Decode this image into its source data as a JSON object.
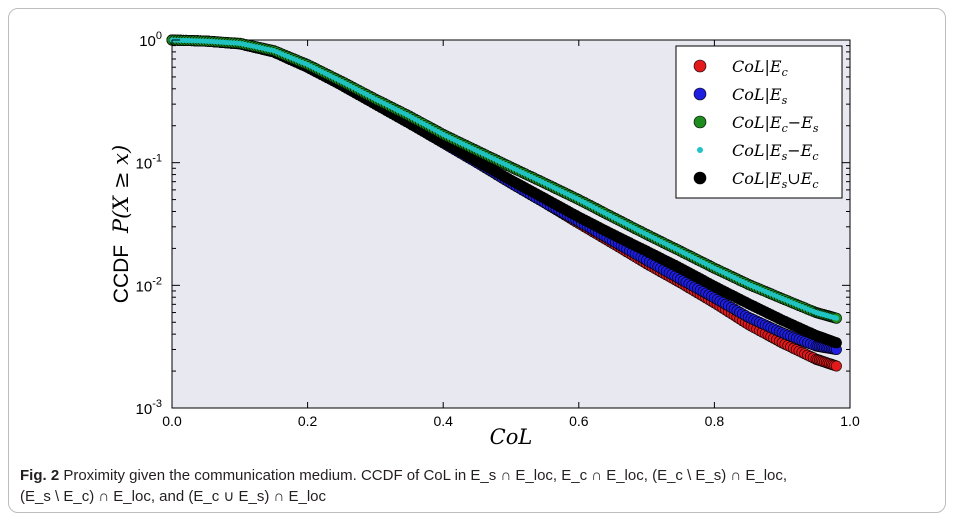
{
  "chart_data": {
    "type": "scatter",
    "xlabel": "CoL",
    "ylabel_prefix": "CCDF",
    "ylabel_math": "P(X ≥ x)",
    "xlim": [
      0.0,
      1.0
    ],
    "ylim": [
      0.001,
      1.0
    ],
    "yscale": "log",
    "grid": false,
    "legend_position": "top-right",
    "x_ticks": [
      "0.0",
      "0.2",
      "0.4",
      "0.6",
      "0.8",
      "1.0"
    ],
    "y_ticks": [
      {
        "base": "10",
        "exp": "0"
      },
      {
        "base": "10",
        "exp": "-1"
      },
      {
        "base": "10",
        "exp": "-2"
      },
      {
        "base": "10",
        "exp": "-3"
      }
    ],
    "series": [
      {
        "name": "CoL|E_c",
        "label_main": "CoL|E",
        "label_sub": "c",
        "label_rest": "",
        "color": "#e31a1c",
        "marker": "large",
        "x": [
          0.0,
          0.05,
          0.1,
          0.15,
          0.2,
          0.25,
          0.3,
          0.35,
          0.4,
          0.45,
          0.5,
          0.55,
          0.6,
          0.65,
          0.7,
          0.75,
          0.8,
          0.85,
          0.9,
          0.95,
          0.98
        ],
        "y": [
          1.0,
          0.98,
          0.93,
          0.8,
          0.6,
          0.43,
          0.3,
          0.21,
          0.145,
          0.1,
          0.068,
          0.047,
          0.032,
          0.022,
          0.015,
          0.0105,
          0.0072,
          0.0048,
          0.0034,
          0.0025,
          0.0022
        ]
      },
      {
        "name": "CoL|E_s",
        "label_main": "CoL|E",
        "label_sub": "s",
        "label_rest": "",
        "color": "#1f1fe0",
        "marker": "large",
        "x": [
          0.0,
          0.05,
          0.1,
          0.15,
          0.2,
          0.25,
          0.3,
          0.35,
          0.4,
          0.45,
          0.5,
          0.55,
          0.6,
          0.65,
          0.7,
          0.75,
          0.8,
          0.85,
          0.9,
          0.95,
          0.98
        ],
        "y": [
          1.0,
          0.98,
          0.93,
          0.8,
          0.6,
          0.43,
          0.3,
          0.21,
          0.145,
          0.1,
          0.068,
          0.047,
          0.033,
          0.023,
          0.016,
          0.0112,
          0.0079,
          0.0055,
          0.0041,
          0.0032,
          0.003
        ]
      },
      {
        "name": "CoL|E_c−E_s",
        "label_main": "CoL|E",
        "label_sub": "c",
        "label_rest": "−E_s",
        "color": "#1e8c1e",
        "marker": "large",
        "x": [
          0.0,
          0.05,
          0.1,
          0.15,
          0.2,
          0.25,
          0.3,
          0.35,
          0.4,
          0.45,
          0.5,
          0.55,
          0.6,
          0.65,
          0.7,
          0.75,
          0.8,
          0.85,
          0.9,
          0.95,
          0.98
        ],
        "y": [
          1.0,
          0.98,
          0.94,
          0.82,
          0.63,
          0.46,
          0.33,
          0.24,
          0.17,
          0.125,
          0.092,
          0.068,
          0.05,
          0.036,
          0.026,
          0.019,
          0.0138,
          0.0102,
          0.0078,
          0.006,
          0.0054
        ]
      },
      {
        "name": "CoL|E_s−E_c",
        "label_main": "CoL|E",
        "label_sub": "s",
        "label_rest": "−E_c",
        "color": "#21c4c4",
        "marker": "small",
        "x": [
          0.0,
          0.05,
          0.1,
          0.15,
          0.2,
          0.25,
          0.3,
          0.35,
          0.4,
          0.45,
          0.5,
          0.55,
          0.6,
          0.65,
          0.7,
          0.75,
          0.8,
          0.85,
          0.9,
          0.95,
          0.98
        ],
        "y": [
          1.0,
          0.98,
          0.94,
          0.82,
          0.63,
          0.46,
          0.33,
          0.24,
          0.17,
          0.125,
          0.092,
          0.068,
          0.05,
          0.036,
          0.026,
          0.019,
          0.0138,
          0.0102,
          0.0078,
          0.006,
          0.0054
        ]
      },
      {
        "name": "CoL|E_s∪E_c",
        "label_main": "CoL|E",
        "label_sub": "s",
        "label_rest": "∪E_c",
        "color": "#000000",
        "marker": "large",
        "x": [
          0.0,
          0.05,
          0.1,
          0.15,
          0.2,
          0.25,
          0.3,
          0.35,
          0.4,
          0.45,
          0.5,
          0.55,
          0.6,
          0.65,
          0.7,
          0.75,
          0.8,
          0.85,
          0.9,
          0.95,
          0.98
        ],
        "y": [
          1.0,
          0.98,
          0.93,
          0.8,
          0.6,
          0.43,
          0.3,
          0.21,
          0.148,
          0.103,
          0.072,
          0.051,
          0.036,
          0.026,
          0.019,
          0.0138,
          0.0098,
          0.0071,
          0.0052,
          0.0039,
          0.0034
        ]
      }
    ]
  },
  "caption": {
    "fig_label": "Fig. 2",
    "text_line1": "Proximity given the communication medium. CCDF of CoL in E_s ∩ E_loc, E_c ∩ E_loc, (E_c \\ E_s) ∩ E_loc,",
    "text_line2": "(E_s \\ E_c) ∩ E_loc, and (E_c ∪ E_s) ∩ E_loc"
  }
}
